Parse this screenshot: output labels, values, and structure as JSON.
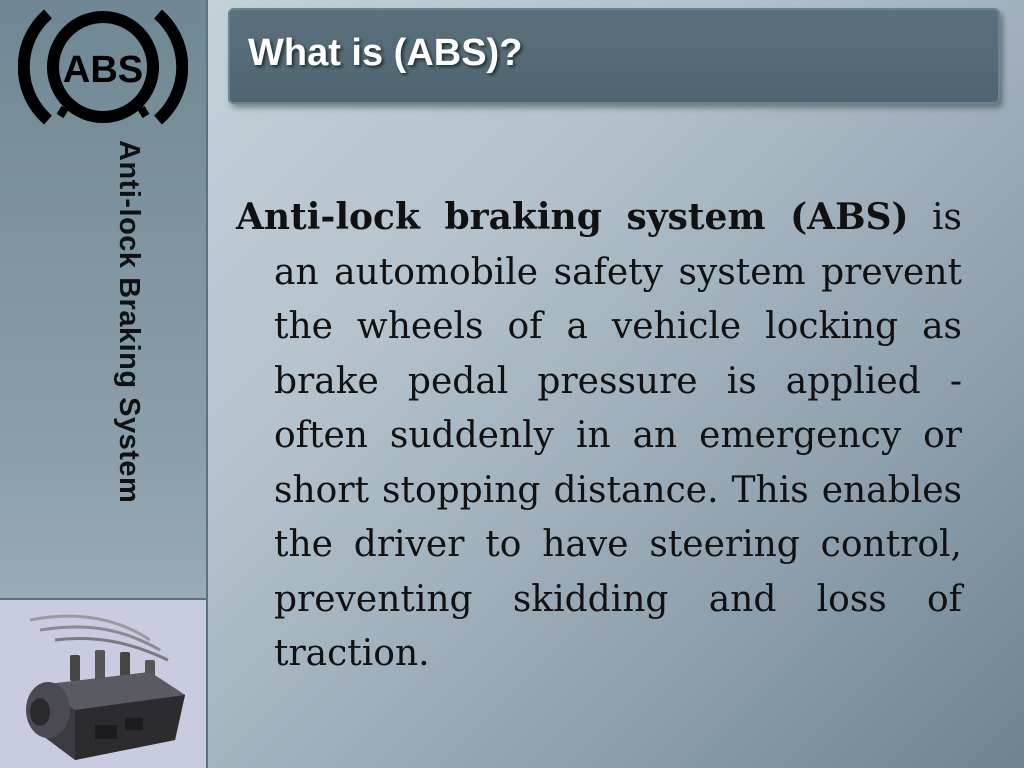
{
  "sidebar": {
    "logo_text": "ABS",
    "vertical_title": "Anti-lock Braking System"
  },
  "header": {
    "title": "What is (ABS)?"
  },
  "content": {
    "term_bold": "Anti-lock braking system (ABS)",
    "definition": " is an automobile safety system prevent the wheels of a vehicle locking as brake pedal pressure is applied - often suddenly in an emergency or short stopping distance. This enables the driver to have steering control, preventing skidding and loss of traction."
  },
  "colors": {
    "banner": "#526874",
    "sidebar": "#7e95a1",
    "image_panel": "#c9cbe0",
    "text": "#111111"
  }
}
